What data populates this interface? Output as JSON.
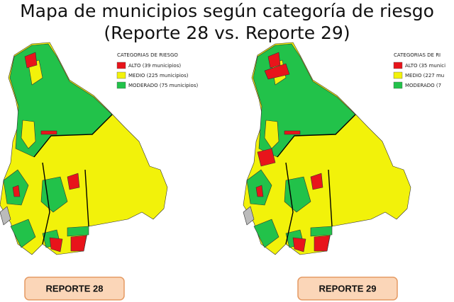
{
  "title": "Mapa de municipios según categoría de riesgo",
  "subtitle": "(Reporte 28 vs. Reporte 29)",
  "maps": [
    {
      "legend_title": "CATEGORIAS DE RIESGO",
      "legend": [
        {
          "label": "ALTO (39 municipios)",
          "color": "#e8141b"
        },
        {
          "label": "MEDIO (225 municipios)",
          "color": "#f2f20a"
        },
        {
          "label": "MODERADO (75 municipios)",
          "color": "#22c24a"
        }
      ],
      "button": "REPORTE 28"
    },
    {
      "legend_title": "CATEGORIAS DE RI",
      "legend": [
        {
          "label": "ALTO (35 munici",
          "color": "#e8141b"
        },
        {
          "label": "MEDIO (227 mu",
          "color": "#f2f20a"
        },
        {
          "label": "MODERADO (7",
          "color": "#22c24a"
        }
      ],
      "button": "REPORTE 29"
    }
  ]
}
